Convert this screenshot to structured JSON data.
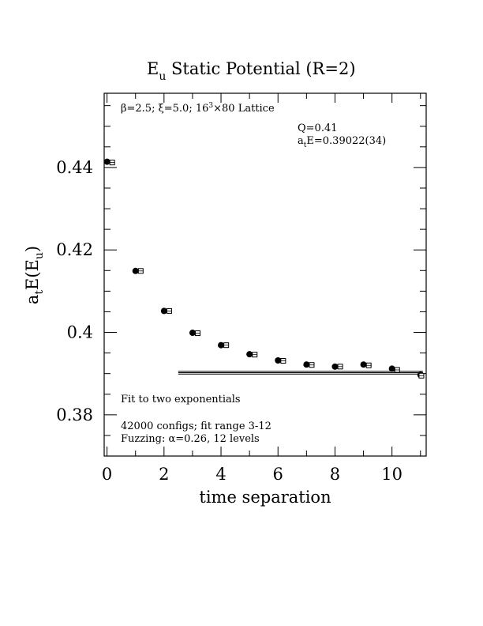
{
  "chart_data": {
    "type": "scatter",
    "title": "E_u Static Potential (R=2)",
    "title_main": "E",
    "title_sub": "u",
    "title_rest": " Static Potential (R=2)",
    "xlabel": "time separation",
    "ylabel_main": "a",
    "ylabel_sub1": "t",
    "ylabel_mid": "E(E",
    "ylabel_sub2": "u",
    "ylabel_end": ")",
    "xlim": [
      -0.1,
      11.2
    ],
    "ylim": [
      0.37,
      0.458
    ],
    "x_ticks": [
      0,
      2,
      4,
      6,
      8,
      10
    ],
    "x_tick_labels": [
      "0",
      "2",
      "4",
      "6",
      "8",
      "10"
    ],
    "y_ticks": [
      0.38,
      0.4,
      0.42,
      0.44
    ],
    "y_tick_labels": [
      "0.38",
      "0.4",
      "0.42",
      "0.44"
    ],
    "series": [
      {
        "marker": "filled-circle",
        "x": [
          0,
          1,
          2,
          3,
          4,
          5,
          6,
          7,
          8,
          9,
          10,
          11
        ],
        "y": [
          0.4414,
          0.4149,
          0.4052,
          0.3999,
          0.3969,
          0.3947,
          0.3932,
          0.3922,
          0.3917,
          0.3922,
          0.3912,
          0.3897
        ]
      },
      {
        "marker": "open-square",
        "x": [
          0.1,
          1.1,
          2.1,
          3.1,
          4.1,
          5.1,
          6.1,
          7.1,
          8.1,
          9.1,
          10.1,
          10.95
        ],
        "y": [
          0.4412,
          0.4149,
          0.4052,
          0.3998,
          0.3969,
          0.3946,
          0.3931,
          0.3921,
          0.3917,
          0.392,
          0.3909,
          0.3895
        ]
      }
    ],
    "fit": {
      "x_range": [
        2.5,
        11.2
      ],
      "value": 0.39022,
      "error": 0.00034
    },
    "annotations": {
      "lattice_a": "β=2.5; ξ=5.0; 16",
      "lattice_sup": "3",
      "lattice_b": "×80 Lattice",
      "q_value": "Q=0.41",
      "energy_a": "a",
      "energy_sub": "t",
      "energy_b": "E=0.39022(34)",
      "fit_note": "Fit to two exponentials",
      "configs_note": "42000 configs; fit range 3-12",
      "fuzzing_note": "Fuzzing: α=0.26, 12 levels"
    }
  }
}
